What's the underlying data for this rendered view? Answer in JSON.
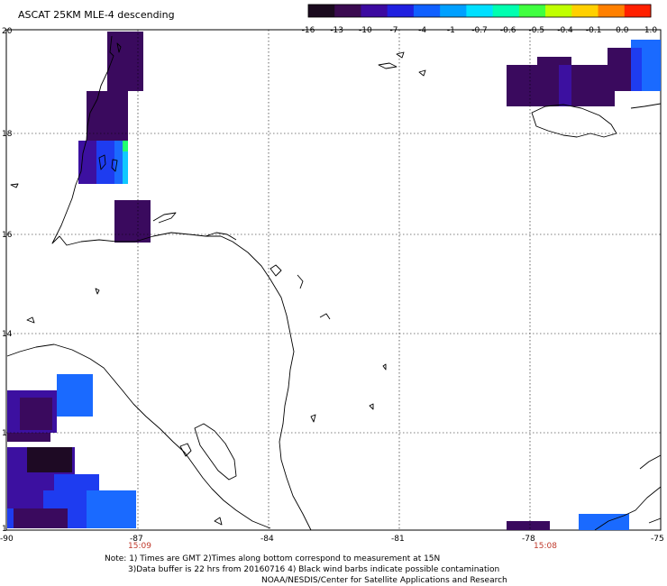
{
  "title": "ASCAT 25KM MLE-4 descending",
  "colorbar": {
    "labels": [
      "-16",
      "-13",
      "-10",
      "-7",
      "-4",
      "-1",
      "-0.7",
      "-0.6",
      "-0.5",
      "-0.4",
      "-0.1",
      "0.0",
      "1.0"
    ],
    "colors": [
      "#1a0a1e",
      "#3a0a50",
      "#3c0aa0",
      "#2020e0",
      "#1060ff",
      "#00a0ff",
      "#00e0ff",
      "#00ffb0",
      "#40ff40",
      "#c0ff00",
      "#ffd000",
      "#ff8000",
      "#ff2000"
    ]
  },
  "axes": {
    "lat_labels": [
      "20",
      "18",
      "16",
      "14",
      "1",
      "1"
    ],
    "lon_labels": [
      "-90",
      "-87",
      "-84",
      "-81",
      "-78",
      "-75"
    ]
  },
  "time_labels": [
    "15:09",
    "15:08"
  ],
  "notes": {
    "line1": "Note: 1) Times are GMT 2)Times along bottom correspond to measurement at 15N",
    "line2": "3)Data buffer is 22 hrs from 20160716 4) Black wind barbs indicate possible contamination",
    "line3": "NOAA/NESDIS/Center for Satellite Applications and Research"
  },
  "palette": {
    "dark_purple": "#3a0a5e",
    "indigo": "#3c10a0",
    "blue": "#1e3cf0",
    "bright_blue": "#1a6aff",
    "black_purple": "#1e0a24",
    "cyan": "#10c8ff",
    "green": "#20ff70"
  }
}
